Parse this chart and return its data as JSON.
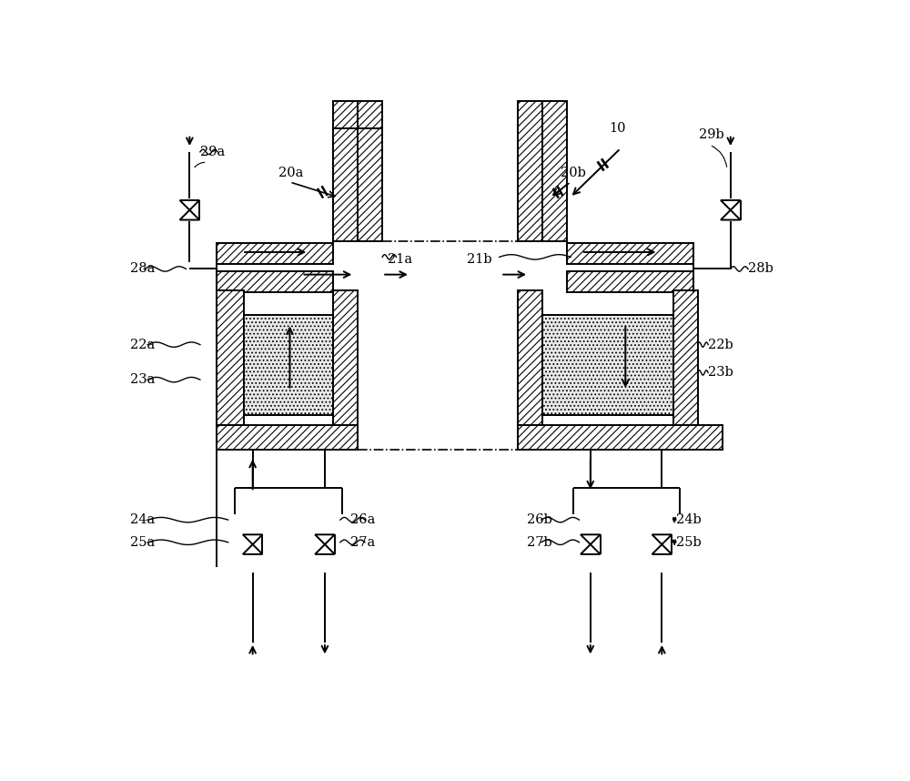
{
  "fig_width": 10.0,
  "fig_height": 8.58,
  "bg_color": "#ffffff",
  "line_color": "#000000",
  "lw_main": 1.4,
  "lw_thin": 1.0,
  "lw_thick": 2.0,
  "hatch_wall": "////",
  "hatch_regen": "....",
  "label_fs": 10.5,
  "arrow_ms": 12,
  "left": {
    "labels": {
      "valve_top": "29a",
      "burner": "20a",
      "burner_port": "21a",
      "air_pipe": "28a",
      "regen_body": "22a",
      "regen_fill": "23a",
      "air_valve_label": "24a",
      "air_valve_label2": "25a",
      "exhaust_label": "26a",
      "exhaust_label2": "27a"
    }
  },
  "right": {
    "labels": {
      "furnace": "10",
      "valve_top": "29b",
      "burner": "20b",
      "burner_port": "21b",
      "air_pipe": "28b",
      "regen_body": "22b",
      "regen_fill": "23b",
      "air_valve_label": "24b",
      "air_valve_label2": "25b",
      "exhaust_label": "26b",
      "exhaust_label2": "27b"
    }
  }
}
